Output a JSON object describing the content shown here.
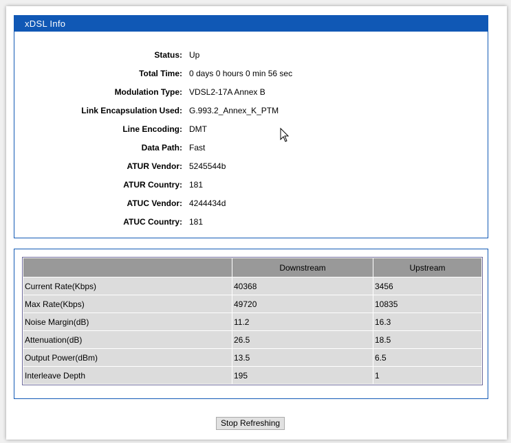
{
  "panel_title": "xDSL Info",
  "info": [
    {
      "label": "Status:",
      "value": "Up"
    },
    {
      "label": "Total Time:",
      "value": "0 days 0 hours 0 min 56 sec"
    },
    {
      "label": "Modulation Type:",
      "value": "VDSL2-17A Annex B"
    },
    {
      "label": "Link Encapsulation Used:",
      "value": "G.993.2_Annex_K_PTM"
    },
    {
      "label": "Line Encoding:",
      "value": "DMT"
    },
    {
      "label": "Data Path:",
      "value": "Fast"
    },
    {
      "label": "ATUR Vendor:",
      "value": "5245544b"
    },
    {
      "label": "ATUR Country:",
      "value": "181"
    },
    {
      "label": "ATUC Vendor:",
      "value": "4244434d"
    },
    {
      "label": "ATUC Country:",
      "value": "181"
    }
  ],
  "table": {
    "headers": [
      "",
      "Downstream",
      "Upstream"
    ],
    "rows": [
      [
        "Current Rate(Kbps)",
        "40368",
        "3456"
      ],
      [
        "Max Rate(Kbps)",
        "49720",
        "10835"
      ],
      [
        "Noise Margin(dB)",
        "11.2",
        "16.3"
      ],
      [
        "Attenuation(dB)",
        "26.5",
        "18.5"
      ],
      [
        "Output Power(dBm)",
        "13.5",
        "6.5"
      ],
      [
        "Interleave Depth",
        "195",
        "1"
      ]
    ]
  },
  "stop_button": "Stop Refreshing",
  "colors": {
    "accent": "#1058b5",
    "header_gray": "#999999",
    "cell_gray": "#dcdcdc"
  }
}
